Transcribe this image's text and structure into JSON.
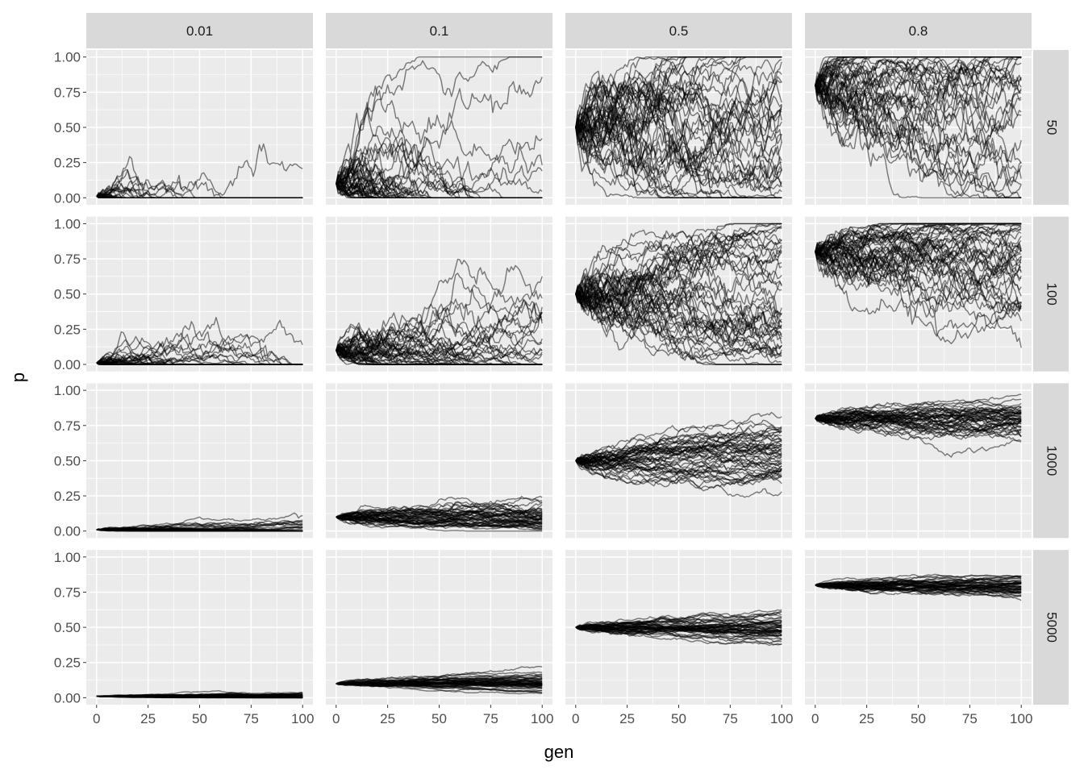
{
  "chart_data": {
    "type": "line",
    "xlabel": "gen",
    "ylabel": "p",
    "xlim": [
      0,
      100
    ],
    "ylim": [
      0,
      1
    ],
    "x_ticks": [
      "0",
      "25",
      "50",
      "75",
      "100"
    ],
    "y_ticks": [
      "0.00",
      "0.25",
      "0.50",
      "0.75",
      "1.00"
    ],
    "facet_columns": [
      "0.01",
      "0.1",
      "0.5",
      "0.8"
    ],
    "facet_rows": [
      "50",
      "100",
      "1000",
      "5000"
    ],
    "grid": true,
    "line_color": "#000000",
    "line_alpha": 0.5,
    "panel_background": "#ebebeb",
    "strip_background": "#d9d9d9",
    "generations": 100,
    "replicates_per_panel": 50,
    "description_of_series": "Each panel holds many stochastic trajectories of p over gen, starting at the column value with population size given by the row value"
  }
}
